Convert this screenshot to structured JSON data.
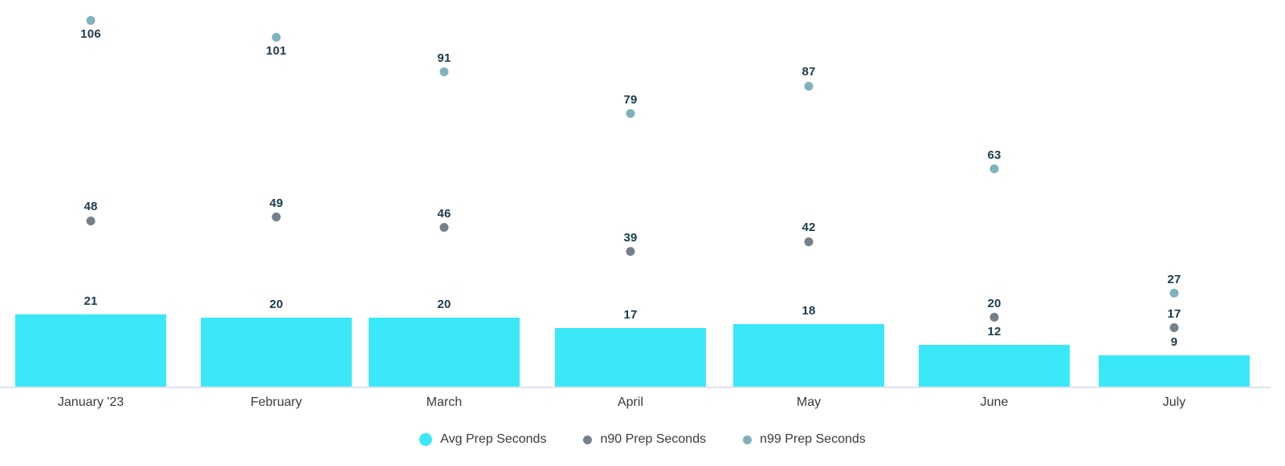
{
  "chart_data": {
    "type": "bar",
    "title": "",
    "xlabel": "",
    "ylabel": "",
    "grid": false,
    "legend_position": "bottom",
    "ylim": [
      0,
      112
    ],
    "categories": [
      "January '23",
      "February",
      "March",
      "April",
      "May",
      "June",
      "July"
    ],
    "series": [
      {
        "name": "Avg Prep Seconds",
        "type": "bar",
        "color": "#3be8f9",
        "values": [
          21,
          20,
          20,
          17,
          18,
          12,
          9
        ]
      },
      {
        "name": "n90 Prep Seconds",
        "type": "scatter",
        "color": "#75808b",
        "values": [
          48,
          49,
          46,
          39,
          42,
          20,
          17
        ]
      },
      {
        "name": "n99 Prep Seconds",
        "type": "scatter",
        "color": "#7fb2bc",
        "values": [
          106,
          101,
          91,
          79,
          87,
          63,
          27
        ]
      }
    ],
    "colors": {
      "value_label": "#1b3c4d",
      "axis_label": "#3b3b3b",
      "legend_label": "#3b3b3b",
      "axis_line": "#e0e3ee",
      "background": "#ffffff"
    }
  }
}
